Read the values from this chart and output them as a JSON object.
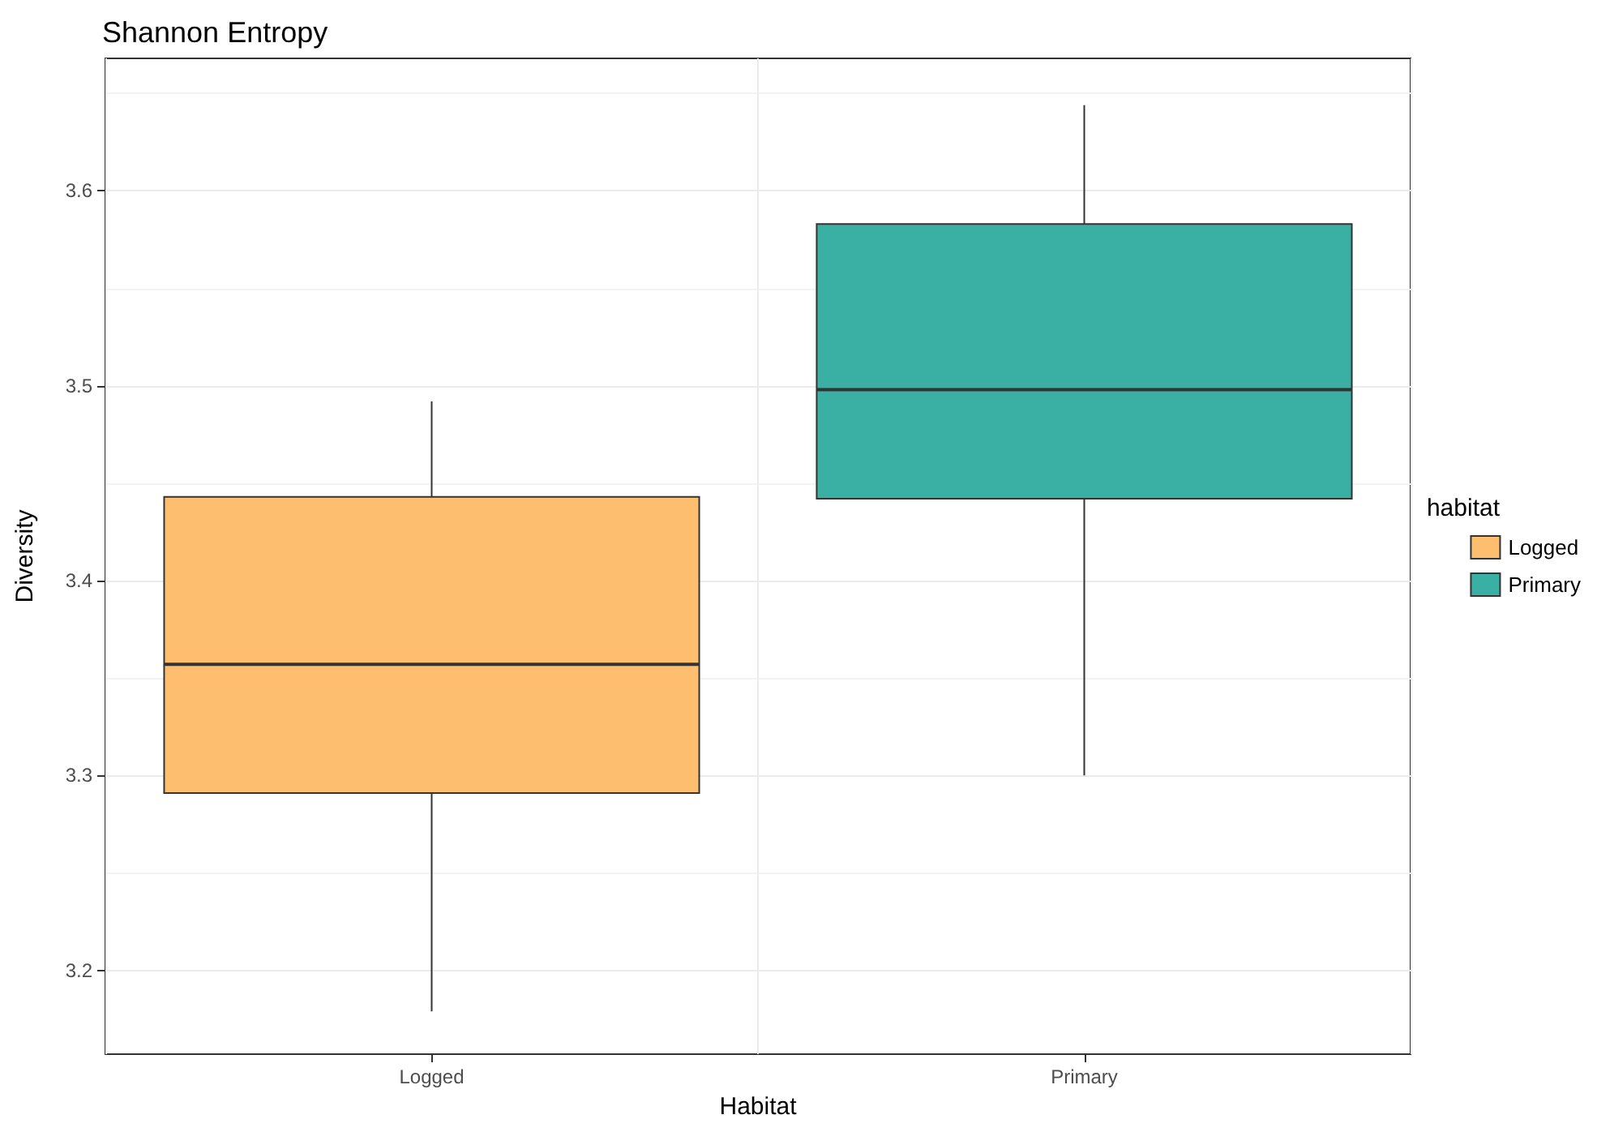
{
  "chart_data": {
    "type": "box",
    "title": "Shannon Entropy",
    "xlabel": "Habitat",
    "ylabel": "Diversity",
    "legend_title": "habitat",
    "categories": [
      "Logged",
      "Primary"
    ],
    "series": [
      {
        "name": "Logged",
        "color": "#fdbf6f",
        "boxes": [
          {
            "low": 3.179,
            "q1": 3.291,
            "median": 3.357,
            "q3": 3.443,
            "high": 3.492
          },
          null
        ]
      },
      {
        "name": "Primary",
        "color": "#3aafa4",
        "boxes": [
          null,
          {
            "low": 3.3,
            "q1": 3.442,
            "median": 3.498,
            "q3": 3.583,
            "high": 3.644
          }
        ]
      }
    ],
    "ylim": [
      3.157,
      3.668
    ],
    "yticks": [
      3.2,
      3.3,
      3.4,
      3.5,
      3.6
    ],
    "grid": true,
    "legend": "right"
  }
}
